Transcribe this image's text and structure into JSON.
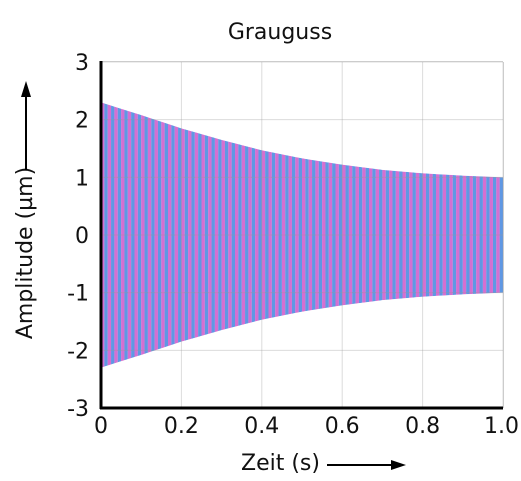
{
  "chart_data": {
    "type": "line",
    "title": "Grauguss",
    "xlabel": "Zeit (s)",
    "ylabel": "Amplitude (µm)",
    "xlim": [
      0,
      1.0
    ],
    "ylim": [
      -3,
      3
    ],
    "x_ticks": [
      "0",
      "0.2",
      "0.4",
      "0.6",
      "0.8",
      "1.0"
    ],
    "y_ticks": [
      "3",
      "2",
      "1",
      "0",
      "-1",
      "-2",
      "-3"
    ],
    "grid": true,
    "series": [
      {
        "description": "decaying oscillation",
        "envelope": {
          "x": [
            0,
            0.1,
            0.2,
            0.3,
            0.4,
            0.5,
            0.6,
            0.7,
            0.8,
            0.9,
            1.0
          ],
          "y_upper": [
            2.3,
            2.08,
            1.85,
            1.65,
            1.47,
            1.33,
            1.22,
            1.13,
            1.07,
            1.03,
            1.0
          ],
          "y_lower": [
            -2.3,
            -2.08,
            -1.85,
            -1.65,
            -1.47,
            -1.33,
            -1.22,
            -1.13,
            -1.07,
            -1.03,
            -1.0
          ]
        },
        "oscillation_count": 60
      }
    ],
    "colors": {
      "stripe_a": "#e26ad0",
      "stripe_b": "#3fa3ea",
      "axis": "#000000",
      "grid": "#9a9a9a"
    }
  }
}
